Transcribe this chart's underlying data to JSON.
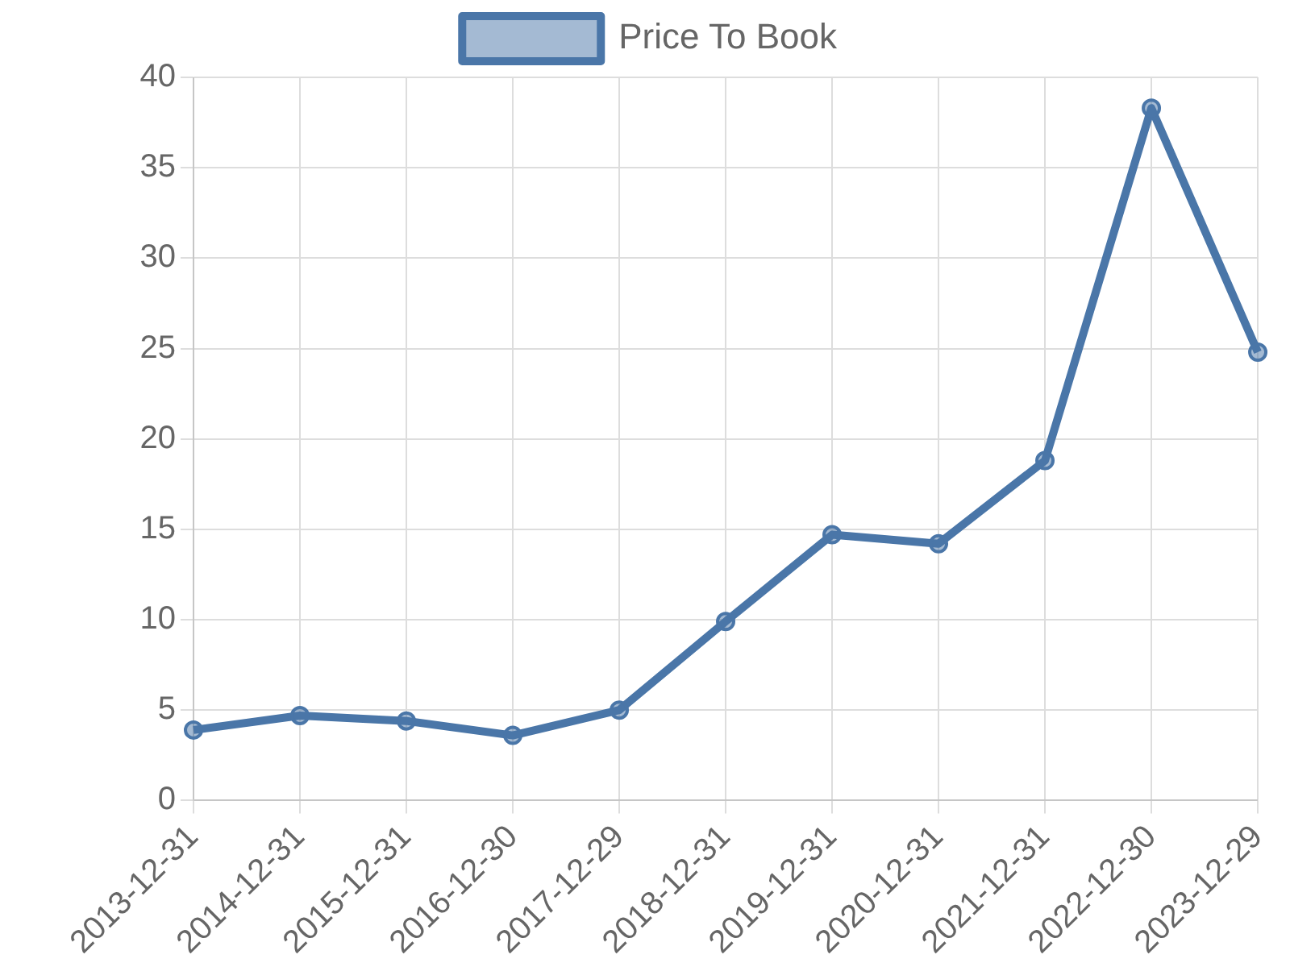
{
  "chart_data": {
    "type": "line",
    "categories": [
      "2013-12-31",
      "2014-12-31",
      "2015-12-31",
      "2016-12-30",
      "2017-12-29",
      "2018-12-31",
      "2019-12-31",
      "2020-12-31",
      "2021-12-31",
      "2022-12-30",
      "2023-12-29"
    ],
    "series": [
      {
        "name": "Price To Book",
        "color": "#4a76a8",
        "values": [
          3.9,
          4.7,
          4.4,
          3.6,
          5.0,
          9.9,
          14.7,
          14.2,
          18.8,
          38.3,
          24.8
        ]
      }
    ],
    "ylim": [
      0,
      40
    ],
    "yticks": [
      0,
      5,
      10,
      15,
      20,
      25,
      30,
      35,
      40
    ],
    "grid": true,
    "legend": "top",
    "marker": "circle",
    "line_style": "solid"
  }
}
